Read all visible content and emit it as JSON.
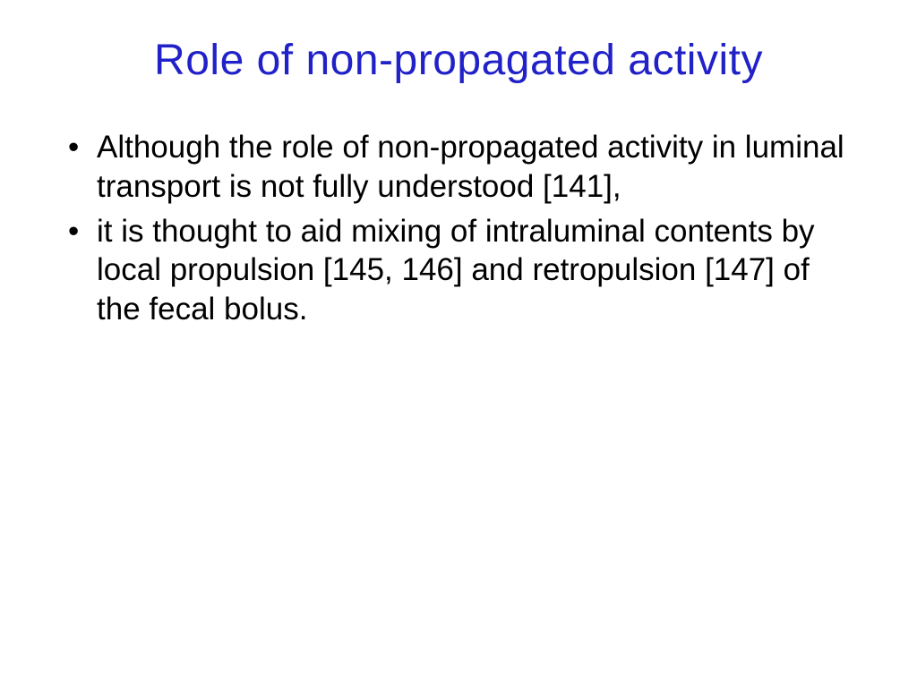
{
  "slide": {
    "title": "Role of non-propagated activity",
    "title_color": "#2121c8",
    "title_fontsize": 48,
    "body_fontsize": 35,
    "body_color": "#000000",
    "background_color": "#ffffff",
    "bullets": [
      "Although the role of non-propagated activity in luminal transport is not fully understood [141],",
      "it is thought to aid mixing of intraluminal contents by local propulsion [145, 146] and retropulsion [147] of the fecal bolus."
    ]
  }
}
